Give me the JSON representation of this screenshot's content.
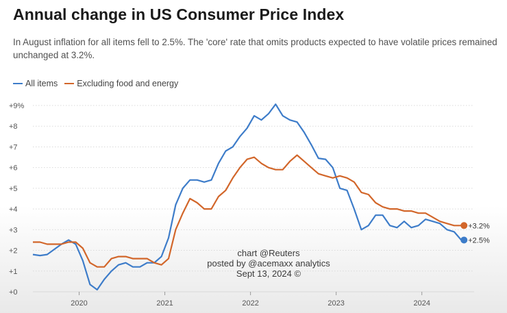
{
  "title": "Annual change in US Consumer Price Index",
  "subtitle": "In August inflation for all items fell to 2.5%. The 'core' rate that omits products expected to have volatile prices remained unchanged at 3.2%.",
  "watermark": {
    "line1": "chart @Reuters",
    "line2": "posted by @acemaxx analytics",
    "line3": "Sept 13, 2024 ©"
  },
  "colors": {
    "all_items": "#3d7cc9",
    "core": "#d2662a",
    "grid": "#d9d9d9",
    "text": "#555555"
  },
  "chart_data": {
    "type": "line",
    "title": "Annual change in US Consumer Price Index",
    "xlabel": "",
    "ylabel": "",
    "ylim": [
      0,
      9
    ],
    "y_ticks": [
      {
        "value": 0,
        "label": "+0"
      },
      {
        "value": 1,
        "label": "+1"
      },
      {
        "value": 2,
        "label": "+2"
      },
      {
        "value": 3,
        "label": "+3"
      },
      {
        "value": 4,
        "label": "+4"
      },
      {
        "value": 5,
        "label": "+5"
      },
      {
        "value": 6,
        "label": "+6"
      },
      {
        "value": 7,
        "label": "+7"
      },
      {
        "value": 8,
        "label": "+8"
      },
      {
        "value": 9,
        "label": "+9%"
      }
    ],
    "x_ticks": [
      {
        "value": 2020,
        "label": "2020"
      },
      {
        "value": 2021,
        "label": "2021"
      },
      {
        "value": 2022,
        "label": "2022"
      },
      {
        "value": 2023,
        "label": "2023"
      },
      {
        "value": 2024,
        "label": "2024"
      }
    ],
    "x_start": 2019.5,
    "x_step": 0.0833333,
    "legend_position": "top-left",
    "series": [
      {
        "name": "All items",
        "key": "all_items",
        "end_label": "+2.5%",
        "values": [
          1.8,
          1.75,
          1.8,
          2.05,
          2.3,
          2.5,
          2.3,
          1.5,
          0.35,
          0.1,
          0.6,
          1.0,
          1.3,
          1.4,
          1.2,
          1.2,
          1.4,
          1.4,
          1.7,
          2.6,
          4.2,
          5.0,
          5.4,
          5.4,
          5.3,
          5.4,
          6.2,
          6.8,
          7.0,
          7.5,
          7.9,
          8.5,
          8.3,
          8.6,
          9.06,
          8.5,
          8.3,
          8.2,
          7.7,
          7.1,
          6.45,
          6.4,
          6.0,
          5.0,
          4.9,
          4.0,
          3.0,
          3.2,
          3.7,
          3.7,
          3.2,
          3.1,
          3.4,
          3.1,
          3.2,
          3.5,
          3.4,
          3.3,
          3.0,
          2.9,
          2.5
        ]
      },
      {
        "name": "Excluding food and energy",
        "key": "core",
        "end_label": "+3.2%",
        "values": [
          2.4,
          2.4,
          2.3,
          2.3,
          2.3,
          2.4,
          2.4,
          2.1,
          1.4,
          1.2,
          1.2,
          1.6,
          1.7,
          1.7,
          1.6,
          1.6,
          1.6,
          1.4,
          1.3,
          1.6,
          3.0,
          3.8,
          4.5,
          4.3,
          4.0,
          4.0,
          4.6,
          4.9,
          5.5,
          6.0,
          6.4,
          6.5,
          6.2,
          6.0,
          5.9,
          5.9,
          6.3,
          6.6,
          6.3,
          6.0,
          5.7,
          5.6,
          5.5,
          5.6,
          5.5,
          5.3,
          4.8,
          4.7,
          4.3,
          4.1,
          4.0,
          4.0,
          3.9,
          3.9,
          3.8,
          3.8,
          3.6,
          3.4,
          3.3,
          3.2,
          3.2
        ]
      }
    ]
  }
}
